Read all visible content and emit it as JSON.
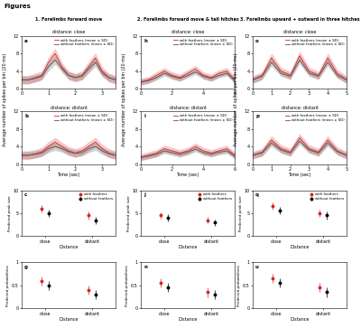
{
  "title": "Figures",
  "columns": [
    "1. Forelimbs forward move",
    "2. Forelimbs forward move & tail hitches",
    "3. Forelimbs upward + outward in three hitches"
  ],
  "time_ylabel": "Average number of spikes per bin (20 ms)",
  "chart_data": [
    {
      "type": "line",
      "panel": "a",
      "title": "distance: close",
      "x": [
        0,
        0.25,
        0.5,
        0.75,
        1,
        1.25,
        1.5,
        1.75,
        2,
        2.25,
        2.5,
        2.75,
        3,
        3.25,
        3.5
      ],
      "xlim": [
        0,
        3.5
      ],
      "xticks": [
        0,
        1,
        2,
        3
      ],
      "ylim": [
        0,
        12
      ],
      "yticks": [
        0,
        4,
        8,
        12
      ],
      "legend": "upper right",
      "series": [
        {
          "name": "with feathers (mean ± SD)",
          "color": "#d62728",
          "values": [
            2,
            2,
            2.5,
            3,
            6,
            8,
            5,
            3,
            2.5,
            3,
            5,
            7,
            4,
            2.5,
            2
          ],
          "sd": [
            1,
            1,
            1,
            1,
            1.2,
            1.2,
            1,
            1,
            1,
            1,
            1.2,
            1.2,
            1,
            1,
            1
          ]
        },
        {
          "name": "without feathers (mean ± SD)",
          "color": "#555555",
          "values": [
            2,
            2,
            2.3,
            2.8,
            5,
            6.5,
            4.5,
            3,
            2.5,
            2.8,
            4.5,
            6,
            3.5,
            2.5,
            2
          ],
          "sd": [
            0.8,
            0.8,
            0.8,
            0.8,
            1,
            1,
            0.8,
            0.8,
            0.8,
            0.8,
            1,
            1,
            0.8,
            0.8,
            0.8
          ]
        }
      ]
    },
    {
      "type": "line",
      "panel": "b",
      "title": "distance: distant",
      "xlabel": "Time (sec)",
      "x": [
        0,
        0.25,
        0.5,
        0.75,
        1,
        1.25,
        1.5,
        1.75,
        2,
        2.25,
        2.5,
        2.75,
        3,
        3.25,
        3.5
      ],
      "xlim": [
        0,
        3.5
      ],
      "xticks": [
        0,
        1,
        2,
        3
      ],
      "ylim": [
        0,
        12
      ],
      "yticks": [
        0,
        4,
        8,
        12
      ],
      "legend": "upper right",
      "series": [
        {
          "name": "with feathers (mean ± SD)",
          "color": "#d62728",
          "values": [
            2,
            2,
            2.3,
            2.8,
            4,
            5,
            4,
            3,
            2.5,
            3,
            4,
            5,
            3.5,
            2.5,
            2
          ],
          "sd": [
            1,
            1,
            1,
            1,
            1.1,
            1.1,
            1,
            1,
            1,
            1,
            1.1,
            1.1,
            1,
            1,
            1
          ]
        },
        {
          "name": "without feathers (mean ± SD)",
          "color": "#555555",
          "values": [
            2,
            2,
            2.2,
            2.5,
            3.5,
            4,
            3.5,
            2.8,
            2.4,
            2.6,
            3.5,
            4,
            3,
            2.3,
            2
          ],
          "sd": [
            0.8,
            0.8,
            0.8,
            0.8,
            0.9,
            0.9,
            0.8,
            0.8,
            0.8,
            0.8,
            0.9,
            0.9,
            0.8,
            0.8,
            0.8
          ]
        }
      ]
    },
    {
      "type": "scatter",
      "panel": "c",
      "xlabel": "Distance",
      "ylabel": "Predicted peak size",
      "marker": "o",
      "categories": [
        "close",
        "distant"
      ],
      "ylim": [
        0,
        10
      ],
      "yticks": [
        0,
        5,
        10
      ],
      "legend": "upper right",
      "series": [
        {
          "name": "with feathers",
          "color": "#d62728",
          "values": [
            6,
            4.5
          ],
          "err": [
            0.8,
            0.8
          ]
        },
        {
          "name": "without feathers",
          "color": "#000000",
          "values": [
            5,
            3.5
          ],
          "err": [
            0.8,
            0.8
          ]
        }
      ]
    },
    {
      "type": "scatter",
      "panel": "g",
      "xlabel": "Distance",
      "ylabel": "Predicted probabilities",
      "marker": "o",
      "categories": [
        "close",
        "distant"
      ],
      "ylim": [
        0,
        1
      ],
      "yticks": [
        0,
        0.5,
        1
      ],
      "series": [
        {
          "color": "#d62728",
          "values": [
            0.6,
            0.4
          ],
          "err": [
            0.1,
            0.1
          ]
        },
        {
          "color": "#000000",
          "values": [
            0.5,
            0.3
          ],
          "err": [
            0.1,
            0.1
          ]
        }
      ]
    },
    {
      "type": "line",
      "panel": "h",
      "title": "distance: close",
      "x": [
        0,
        0.5,
        1,
        1.5,
        2,
        2.5,
        3,
        3.5,
        4,
        4.5,
        5,
        5.5,
        6
      ],
      "xlim": [
        0,
        6
      ],
      "xticks": [
        0,
        2,
        4,
        6
      ],
      "ylim": [
        0,
        12
      ],
      "yticks": [
        0,
        4,
        8,
        12
      ],
      "legend": "upper right",
      "series": [
        {
          "name": "with feathers (mean ± SD)",
          "color": "#d62728",
          "values": [
            1.5,
            2,
            3,
            4,
            3,
            2.5,
            3.5,
            4.5,
            3,
            2.5,
            3.5,
            4,
            2
          ],
          "sd": [
            0.8,
            0.8,
            0.8,
            0.8,
            0.8,
            0.8,
            0.8,
            0.8,
            0.8,
            0.8,
            0.8,
            0.8,
            0.8
          ]
        },
        {
          "name": "without feathers (mean ± SD)",
          "color": "#555555",
          "values": [
            1.5,
            1.8,
            2.5,
            3.5,
            2.8,
            2.3,
            3,
            3.8,
            2.8,
            2.3,
            3,
            3.5,
            1.8
          ],
          "sd": [
            0.6,
            0.6,
            0.6,
            0.6,
            0.6,
            0.6,
            0.6,
            0.6,
            0.6,
            0.6,
            0.6,
            0.6,
            0.6
          ]
        }
      ]
    },
    {
      "type": "line",
      "panel": "i",
      "title": "distance: distant",
      "xlabel": "Time (sec)",
      "x": [
        0,
        0.5,
        1,
        1.5,
        2,
        2.5,
        3,
        3.5,
        4,
        4.5,
        5,
        5.5,
        6
      ],
      "xlim": [
        0,
        6
      ],
      "xticks": [
        0,
        2,
        4,
        6
      ],
      "ylim": [
        0,
        12
      ],
      "yticks": [
        0,
        4,
        8,
        12
      ],
      "legend": "upper right",
      "series": [
        {
          "name": "with feathers (mean ± SD)",
          "color": "#d62728",
          "values": [
            1.5,
            2,
            2.5,
            3.5,
            3,
            2.5,
            3,
            4,
            3,
            2.5,
            3,
            3.5,
            2
          ],
          "sd": [
            0.8,
            0.8,
            0.8,
            0.8,
            0.8,
            0.8,
            0.8,
            0.8,
            0.8,
            0.8,
            0.8,
            0.8,
            0.8
          ]
        },
        {
          "name": "without feathers (mean ± SD)",
          "color": "#555555",
          "values": [
            1.5,
            1.8,
            2.2,
            3,
            2.6,
            2.2,
            2.7,
            3.4,
            2.6,
            2.2,
            2.7,
            3,
            1.8
          ],
          "sd": [
            0.6,
            0.6,
            0.6,
            0.6,
            0.6,
            0.6,
            0.6,
            0.6,
            0.6,
            0.6,
            0.6,
            0.6,
            0.6
          ]
        }
      ]
    },
    {
      "type": "scatter",
      "panel": "j",
      "xlabel": "Distance",
      "ylabel": "Predicted peak size",
      "marker": "o",
      "categories": [
        "close",
        "distant"
      ],
      "ylim": [
        0,
        10
      ],
      "yticks": [
        0,
        5,
        10
      ],
      "legend": "upper right",
      "series": [
        {
          "name": "with feathers",
          "color": "#d62728",
          "values": [
            4.5,
            3.5
          ],
          "err": [
            0.7,
            0.7
          ]
        },
        {
          "name": "without feathers",
          "color": "#000000",
          "values": [
            4,
            3
          ],
          "err": [
            0.7,
            0.7
          ]
        }
      ]
    },
    {
      "type": "scatter",
      "panel": "n",
      "xlabel": "Distance",
      "ylabel": "Predicted probabilities",
      "marker": "o",
      "categories": [
        "close",
        "distant"
      ],
      "ylim": [
        0,
        1
      ],
      "yticks": [
        0,
        0.5,
        1
      ],
      "series": [
        {
          "color": "#d62728",
          "values": [
            0.55,
            0.35
          ],
          "err": [
            0.1,
            0.1
          ]
        },
        {
          "color": "#000000",
          "values": [
            0.45,
            0.3
          ],
          "err": [
            0.1,
            0.1
          ]
        }
      ]
    },
    {
      "type": "line",
      "panel": "o",
      "title": "distance: close",
      "x": [
        0,
        0.5,
        1,
        1.5,
        2,
        2.5,
        3,
        3.5,
        4,
        4.5,
        5
      ],
      "xlim": [
        0,
        5
      ],
      "xticks": [
        0,
        1,
        2,
        3,
        4,
        5
      ],
      "ylim": [
        0,
        12
      ],
      "yticks": [
        0,
        4,
        8,
        12
      ],
      "legend": "upper right",
      "series": [
        {
          "name": "with feathers (mean ± SD)",
          "color": "#d62728",
          "values": [
            2,
            3,
            7,
            4,
            3,
            7.5,
            4,
            3,
            7,
            3.5,
            2
          ],
          "sd": [
            0.9,
            0.9,
            1.1,
            0.9,
            0.9,
            1.1,
            0.9,
            0.9,
            1.1,
            0.9,
            0.9
          ]
        },
        {
          "name": "without feathers (mean ± SD)",
          "color": "#555555",
          "values": [
            2,
            2.8,
            6,
            3.5,
            2.8,
            6.5,
            3.5,
            2.8,
            6,
            3,
            2
          ],
          "sd": [
            0.7,
            0.7,
            0.9,
            0.7,
            0.7,
            0.9,
            0.7,
            0.7,
            0.9,
            0.7,
            0.7
          ]
        }
      ]
    },
    {
      "type": "line",
      "panel": "p",
      "title": "distance: distant",
      "xlabel": "Time (sec)",
      "x": [
        0,
        0.5,
        1,
        1.5,
        2,
        2.5,
        3,
        3.5,
        4,
        4.5,
        5
      ],
      "xlim": [
        0,
        5
      ],
      "xticks": [
        0,
        1,
        2,
        3,
        4,
        5
      ],
      "ylim": [
        0,
        12
      ],
      "yticks": [
        0,
        4,
        8,
        12
      ],
      "legend": "upper right",
      "series": [
        {
          "name": "with feathers (mean ± SD)",
          "color": "#d62728",
          "values": [
            2,
            2.7,
            5.5,
            3.5,
            2.7,
            6,
            3.5,
            2.7,
            5.5,
            3,
            2
          ],
          "sd": [
            0.9,
            0.9,
            1,
            0.9,
            0.9,
            1,
            0.9,
            0.9,
            1,
            0.9,
            0.9
          ]
        },
        {
          "name": "without feathers (mean ± SD)",
          "color": "#555555",
          "values": [
            2,
            2.5,
            4.8,
            3.2,
            2.5,
            5.2,
            3.2,
            2.5,
            4.8,
            2.8,
            2
          ],
          "sd": [
            0.7,
            0.7,
            0.8,
            0.7,
            0.7,
            0.8,
            0.7,
            0.7,
            0.8,
            0.7,
            0.7
          ]
        }
      ]
    },
    {
      "type": "scatter",
      "panel": "q",
      "xlabel": "Distance",
      "ylabel": "Predicted peak size",
      "marker": "o",
      "categories": [
        "close",
        "distant"
      ],
      "ylim": [
        0,
        10
      ],
      "yticks": [
        0,
        5,
        10
      ],
      "legend": "upper right",
      "series": [
        {
          "name": "with feathers",
          "color": "#d62728",
          "values": [
            6.5,
            5
          ],
          "err": [
            0.8,
            0.8
          ]
        },
        {
          "name": "without feathers",
          "color": "#000000",
          "values": [
            5.5,
            4.5
          ],
          "err": [
            0.8,
            0.8
          ]
        }
      ]
    },
    {
      "type": "scatter",
      "panel": "u",
      "xlabel": "Distance",
      "ylabel": "Predicted probabilities",
      "marker": "o",
      "categories": [
        "close",
        "distant"
      ],
      "ylim": [
        0,
        1
      ],
      "yticks": [
        0,
        0.5,
        1
      ],
      "series": [
        {
          "color": "#d62728",
          "values": [
            0.65,
            0.45
          ],
          "err": [
            0.1,
            0.1
          ]
        },
        {
          "color": "#000000",
          "values": [
            0.55,
            0.35
          ],
          "err": [
            0.1,
            0.1
          ]
        }
      ]
    }
  ]
}
